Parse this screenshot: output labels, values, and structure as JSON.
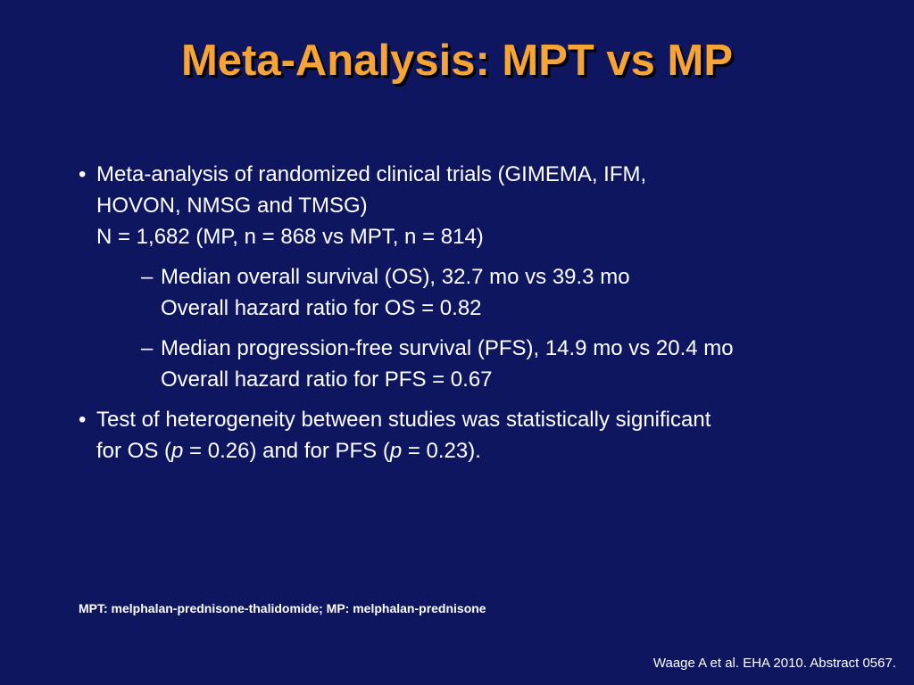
{
  "title": "Meta-Analysis: MPT vs MP",
  "bullets": [
    {
      "marker": "•",
      "lines": [
        "Meta-analysis of randomized clinical trials (GIMEMA, IFM,",
        "HOVON, NMSG and TMSG)",
        "N = 1,682 (MP, n = 868 vs MPT, n = 814)"
      ],
      "subitems": [
        {
          "marker": "–",
          "lines": [
            "Median overall survival (OS), 32.7 mo vs 39.3 mo",
            "Overall hazard ratio for OS = 0.82"
          ]
        },
        {
          "marker": "–",
          "lines": [
            "Median progression-free survival (PFS), 14.9 mo vs 20.4 mo",
            "Overall hazard ratio for PFS = 0.67"
          ]
        }
      ]
    },
    {
      "marker": "•",
      "line1": "Test of heterogeneity between studies was statistically significant",
      "line2_prefix": "for OS (",
      "p_symbol_1": "p",
      "line2_mid": " = 0.26) and for PFS (",
      "p_symbol_2": "p",
      "line2_suffix": " = 0.23)."
    }
  ],
  "footnote": "MPT: melphalan-prednisone-thalidomide; MP: melphalan-prednisone",
  "citation": "Waage A et al. EHA 2010. Abstract 0567.",
  "colors": {
    "background": "#0f1660",
    "title": "#f7a436",
    "text": "#ffffff"
  }
}
